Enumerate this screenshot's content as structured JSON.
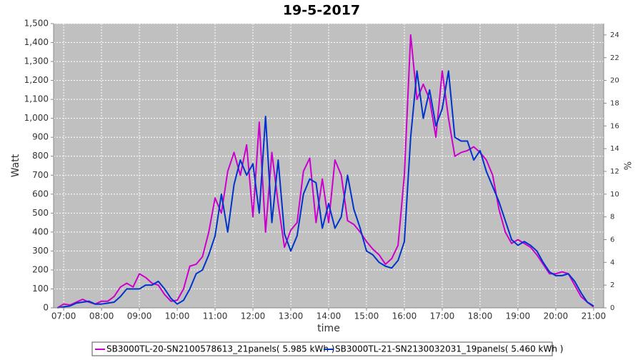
{
  "chart_data": {
    "type": "line",
    "title": "19-5-2017",
    "xlabel": "time",
    "ylabel": "Watt",
    "y2label": "%",
    "x": [
      "06:50",
      "07:00",
      "07:10",
      "07:20",
      "07:30",
      "07:40",
      "07:50",
      "08:00",
      "08:10",
      "08:20",
      "08:30",
      "08:40",
      "08:50",
      "09:00",
      "09:10",
      "09:20",
      "09:30",
      "09:40",
      "09:50",
      "10:00",
      "10:10",
      "10:20",
      "10:30",
      "10:40",
      "10:50",
      "11:00",
      "11:10",
      "11:20",
      "11:30",
      "11:40",
      "11:50",
      "12:00",
      "12:10",
      "12:20",
      "12:30",
      "12:40",
      "12:50",
      "13:00",
      "13:10",
      "13:20",
      "13:30",
      "13:40",
      "13:50",
      "14:00",
      "14:10",
      "14:20",
      "14:30",
      "14:40",
      "14:50",
      "15:00",
      "15:10",
      "15:20",
      "15:30",
      "15:40",
      "15:50",
      "16:00",
      "16:10",
      "16:20",
      "16:30",
      "16:40",
      "16:50",
      "17:00",
      "17:10",
      "17:20",
      "17:30",
      "17:40",
      "17:50",
      "18:00",
      "18:10",
      "18:20",
      "18:30",
      "18:40",
      "18:50",
      "19:00",
      "19:10",
      "19:20",
      "19:30",
      "19:40",
      "19:50",
      "20:00",
      "20:10",
      "20:20",
      "20:30",
      "20:40",
      "20:50",
      "21:00"
    ],
    "series": [
      {
        "name": "SB3000TL-20-SN2100578613_21panels( 5.985 kWh )",
        "color": "#cc00cc",
        "values": [
          0,
          20,
          15,
          30,
          45,
          30,
          20,
          35,
          35,
          60,
          110,
          130,
          110,
          180,
          160,
          130,
          120,
          70,
          35,
          40,
          100,
          220,
          230,
          270,
          400,
          580,
          500,
          720,
          820,
          700,
          860,
          480,
          980,
          400,
          820,
          550,
          320,
          410,
          450,
          720,
          790,
          450,
          680,
          450,
          780,
          700,
          460,
          440,
          400,
          350,
          310,
          280,
          230,
          260,
          330,
          700,
          1440,
          1100,
          1180,
          1100,
          900,
          1250,
          1000,
          800,
          820,
          830,
          850,
          820,
          780,
          700,
          520,
          400,
          340,
          360,
          340,
          320,
          280,
          230,
          180,
          180,
          190,
          180,
          120,
          60,
          30,
          5
        ]
      },
      {
        "name": "SB3000TL-21-SN2130032031_19panels( 5.460 kWh )",
        "color": "#0033cc",
        "values": [
          0,
          5,
          10,
          25,
          30,
          35,
          20,
          20,
          25,
          30,
          60,
          100,
          100,
          100,
          120,
          120,
          140,
          100,
          50,
          20,
          40,
          100,
          180,
          200,
          280,
          380,
          600,
          400,
          650,
          780,
          700,
          760,
          500,
          1010,
          450,
          780,
          390,
          300,
          380,
          600,
          680,
          660,
          420,
          550,
          420,
          480,
          700,
          520,
          420,
          300,
          280,
          240,
          220,
          210,
          250,
          350,
          900,
          1250,
          1000,
          1150,
          960,
          1050,
          1250,
          900,
          880,
          880,
          780,
          830,
          720,
          640,
          560,
          460,
          360,
          330,
          350,
          330,
          300,
          240,
          190,
          170,
          170,
          180,
          140,
          80,
          30,
          10
        ]
      }
    ],
    "xlim": [
      "06:44",
      "21:16"
    ],
    "xticks": [
      "07:00",
      "08:00",
      "09:00",
      "10:00",
      "11:00",
      "12:00",
      "13:00",
      "14:00",
      "15:00",
      "16:00",
      "17:00",
      "18:00",
      "19:00",
      "20:00",
      "21:00"
    ],
    "ylim": [
      0,
      1500
    ],
    "yticks": [
      0,
      100,
      200,
      300,
      400,
      500,
      600,
      700,
      800,
      900,
      {
        "value": 1000,
        "label": "1,000"
      },
      {
        "value": 1100,
        "label": "1,100"
      },
      {
        "value": 1200,
        "label": "1,200"
      },
      {
        "value": 1300,
        "label": "1,300"
      },
      {
        "value": 1400,
        "label": "1,400"
      },
      {
        "value": 1500,
        "label": "1,500"
      }
    ],
    "y2lim": [
      0,
      25
    ],
    "y2ticks": [
      0,
      2,
      4,
      6,
      8,
      10,
      12,
      14,
      16,
      18,
      20,
      22,
      24
    ],
    "grid": true
  }
}
